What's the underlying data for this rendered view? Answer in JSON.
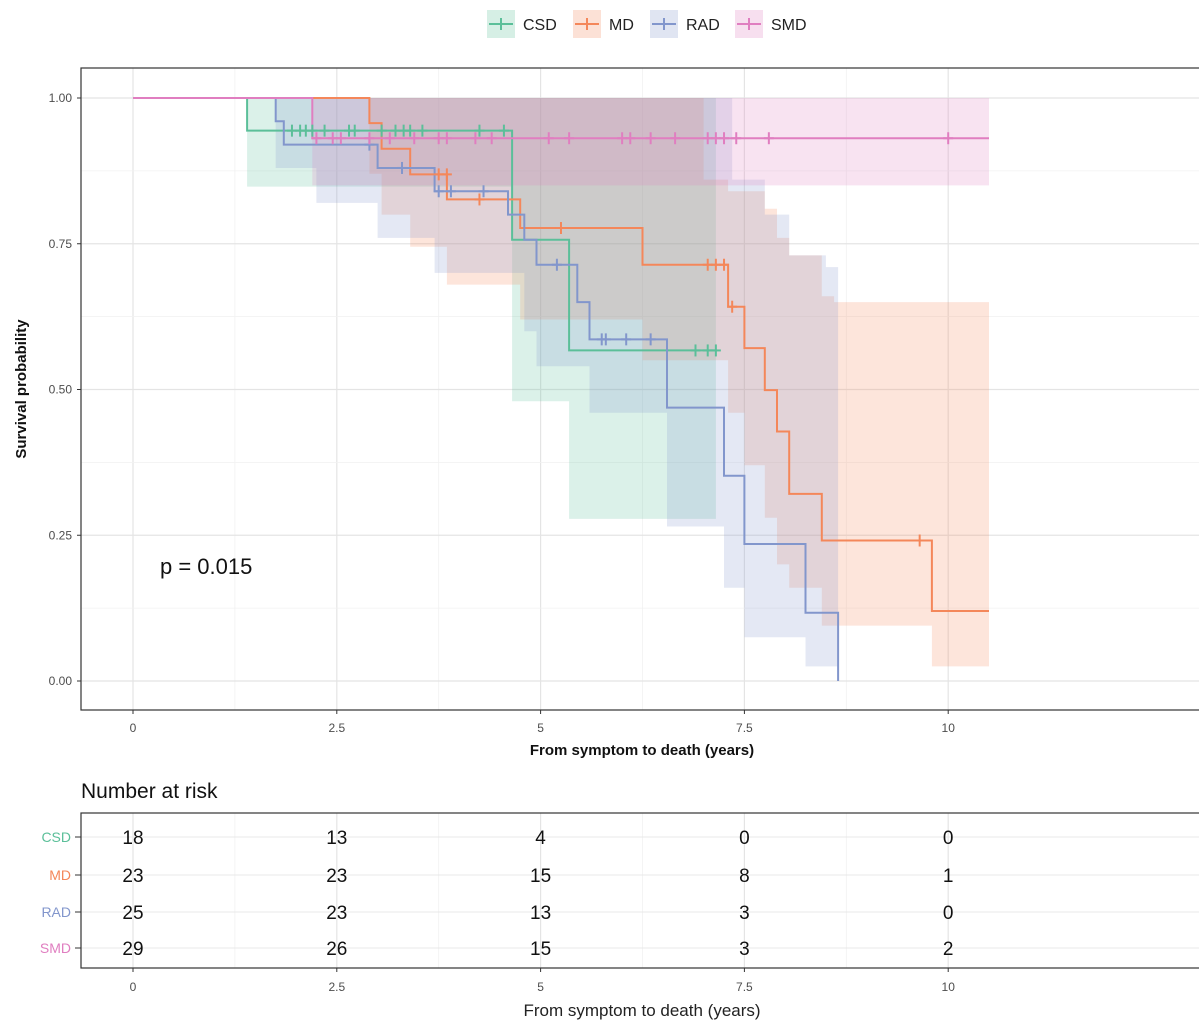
{
  "chart_data": [
    {
      "type": "line",
      "subtype": "kaplan-meier survival curves with confidence bands",
      "xlabel": "From symptom to death (years)",
      "ylabel": "Survival probability",
      "xlim": [
        0,
        10.5
      ],
      "ylim": [
        0,
        1.0
      ],
      "xticks": [
        "0",
        "2.5",
        "5",
        "7.5",
        "10"
      ],
      "yticks": [
        "0.00",
        "0.25",
        "0.50",
        "0.75",
        "1.00"
      ],
      "grid": true,
      "legend_position": "top",
      "annotation": "p = 0.015",
      "series": [
        {
          "name": "CSD",
          "color": "#5bbf99",
          "steps": [
            [
              0,
              1.0
            ],
            [
              1.4,
              0.944
            ],
            [
              4.65,
              0.757
            ],
            [
              5.35,
              0.567
            ],
            [
              7.15,
              0.567
            ]
          ],
          "lower": [
            [
              0,
              1.0
            ],
            [
              1.4,
              0.848
            ],
            [
              4.65,
              0.48
            ],
            [
              5.35,
              0.278
            ],
            [
              7.15,
              0.278
            ]
          ],
          "upper": [
            [
              0,
              1.0
            ],
            [
              1.4,
              1.0
            ],
            [
              7.15,
              1.0
            ]
          ],
          "censored": [
            [
              1.95,
              0.944
            ],
            [
              2.05,
              0.944
            ],
            [
              2.12,
              0.944
            ],
            [
              2.2,
              0.944
            ],
            [
              2.35,
              0.944
            ],
            [
              2.65,
              0.944
            ],
            [
              2.72,
              0.944
            ],
            [
              3.05,
              0.944
            ],
            [
              3.22,
              0.944
            ],
            [
              3.32,
              0.944
            ],
            [
              3.4,
              0.944
            ],
            [
              3.55,
              0.944
            ],
            [
              4.25,
              0.944
            ],
            [
              4.55,
              0.944
            ],
            [
              6.9,
              0.567
            ],
            [
              7.05,
              0.567
            ],
            [
              7.15,
              0.567
            ]
          ]
        },
        {
          "name": "MD",
          "color": "#f4875a",
          "steps": [
            [
              0,
              1.0
            ],
            [
              2.9,
              0.957
            ],
            [
              3.05,
              0.913
            ],
            [
              3.4,
              0.869
            ],
            [
              3.6,
              0.869
            ],
            [
              3.85,
              0.826
            ],
            [
              4.1,
              0.826
            ],
            [
              4.45,
              0.826
            ],
            [
              4.75,
              0.777
            ],
            [
              6.25,
              0.714
            ],
            [
              7.3,
              0.642
            ],
            [
              7.5,
              0.571
            ],
            [
              7.75,
              0.499
            ],
            [
              7.9,
              0.428
            ],
            [
              8.05,
              0.321
            ],
            [
              8.45,
              0.241
            ],
            [
              9.8,
              0.12
            ],
            [
              10.5,
              0.12
            ]
          ],
          "lower": [
            [
              0,
              1.0
            ],
            [
              2.9,
              0.87
            ],
            [
              3.05,
              0.8
            ],
            [
              3.4,
              0.745
            ],
            [
              3.85,
              0.68
            ],
            [
              4.75,
              0.62
            ],
            [
              6.25,
              0.55
            ],
            [
              7.3,
              0.46
            ],
            [
              7.5,
              0.37
            ],
            [
              7.75,
              0.28
            ],
            [
              7.9,
              0.2
            ],
            [
              8.05,
              0.16
            ],
            [
              8.45,
              0.095
            ],
            [
              8.6,
              0.095
            ],
            [
              9.8,
              0.025
            ],
            [
              10.5,
              0.025
            ]
          ],
          "upper": [
            [
              0,
              1.0
            ],
            [
              6.0,
              1.0
            ],
            [
              7.0,
              0.86
            ],
            [
              7.3,
              0.84
            ],
            [
              7.75,
              0.81
            ],
            [
              7.9,
              0.76
            ],
            [
              8.05,
              0.73
            ],
            [
              8.45,
              0.66
            ],
            [
              8.6,
              0.65
            ],
            [
              10.5,
              0.65
            ]
          ],
          "censored": [
            [
              3.75,
              0.869
            ],
            [
              3.85,
              0.869
            ],
            [
              4.25,
              0.826
            ],
            [
              5.25,
              0.777
            ],
            [
              7.05,
              0.714
            ],
            [
              7.15,
              0.714
            ],
            [
              7.25,
              0.714
            ],
            [
              7.35,
              0.642
            ],
            [
              9.65,
              0.241
            ]
          ]
        },
        {
          "name": "RAD",
          "color": "#8296cc",
          "steps": [
            [
              0,
              1.0
            ],
            [
              1.75,
              0.96
            ],
            [
              1.85,
              0.92
            ],
            [
              2.25,
              0.92
            ],
            [
              3.0,
              0.88
            ],
            [
              3.7,
              0.84
            ],
            [
              4.6,
              0.8
            ],
            [
              4.8,
              0.757
            ],
            [
              4.95,
              0.714
            ],
            [
              5.45,
              0.65
            ],
            [
              5.6,
              0.586
            ],
            [
              6.4,
              0.586
            ],
            [
              6.55,
              0.469
            ],
            [
              7.25,
              0.352
            ],
            [
              7.5,
              0.235
            ],
            [
              8.25,
              0.117
            ],
            [
              8.65,
              0.0
            ]
          ],
          "lower": [
            [
              0,
              1.0
            ],
            [
              1.75,
              0.88
            ],
            [
              2.25,
              0.82
            ],
            [
              3.0,
              0.76
            ],
            [
              3.7,
              0.7
            ],
            [
              4.8,
              0.6
            ],
            [
              4.95,
              0.54
            ],
            [
              5.6,
              0.46
            ],
            [
              6.55,
              0.265
            ],
            [
              7.25,
              0.16
            ],
            [
              7.5,
              0.075
            ],
            [
              8.25,
              0.025
            ],
            [
              8.65,
              0.0
            ]
          ],
          "upper": [
            [
              0,
              1.0
            ],
            [
              6.35,
              1.0
            ],
            [
              7.35,
              0.86
            ],
            [
              7.75,
              0.8
            ],
            [
              8.05,
              0.73
            ],
            [
              8.5,
              0.71
            ],
            [
              8.65,
              0.71
            ]
          ],
          "censored": [
            [
              2.9,
              0.92
            ],
            [
              3.3,
              0.88
            ],
            [
              3.75,
              0.84
            ],
            [
              3.9,
              0.84
            ],
            [
              4.3,
              0.84
            ],
            [
              5.2,
              0.714
            ],
            [
              5.75,
              0.586
            ],
            [
              5.8,
              0.586
            ],
            [
              6.05,
              0.586
            ],
            [
              6.35,
              0.586
            ]
          ]
        },
        {
          "name": "SMD",
          "color": "#e07ec0",
          "steps": [
            [
              0,
              1.0
            ],
            [
              2.2,
              0.931
            ],
            [
              10.5,
              0.931
            ]
          ],
          "lower": [
            [
              0,
              1.0
            ],
            [
              2.2,
              0.85
            ],
            [
              10.5,
              0.85
            ]
          ],
          "upper": [
            [
              0,
              1.0
            ],
            [
              10.5,
              1.0
            ]
          ],
          "censored": [
            [
              2.25,
              0.931
            ],
            [
              2.45,
              0.931
            ],
            [
              2.55,
              0.931
            ],
            [
              2.9,
              0.931
            ],
            [
              3.15,
              0.931
            ],
            [
              3.45,
              0.931
            ],
            [
              3.75,
              0.931
            ],
            [
              3.85,
              0.931
            ],
            [
              4.2,
              0.931
            ],
            [
              4.4,
              0.931
            ],
            [
              5.1,
              0.931
            ],
            [
              5.35,
              0.931
            ],
            [
              6.0,
              0.931
            ],
            [
              6.1,
              0.931
            ],
            [
              6.35,
              0.931
            ],
            [
              6.65,
              0.931
            ],
            [
              7.05,
              0.931
            ],
            [
              7.15,
              0.931
            ],
            [
              7.25,
              0.931
            ],
            [
              7.4,
              0.931
            ],
            [
              7.8,
              0.931
            ],
            [
              10.0,
              0.931
            ]
          ]
        }
      ]
    },
    {
      "type": "table",
      "title": "Number at risk",
      "xlabel": "From symptom to death (years)",
      "x": [
        "0",
        "2.5",
        "5",
        "7.5",
        "10"
      ],
      "rows": [
        {
          "label": "CSD",
          "values": [
            18,
            13,
            4,
            0,
            0
          ]
        },
        {
          "label": "MD",
          "values": [
            23,
            23,
            15,
            8,
            1
          ]
        },
        {
          "label": "RAD",
          "values": [
            25,
            23,
            13,
            3,
            0
          ]
        },
        {
          "label": "SMD",
          "values": [
            29,
            26,
            15,
            3,
            2
          ]
        }
      ]
    }
  ]
}
